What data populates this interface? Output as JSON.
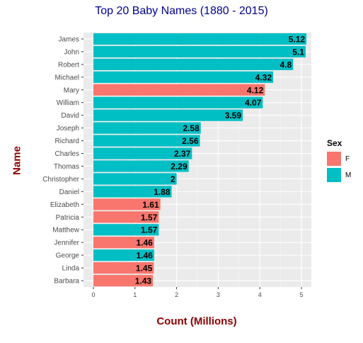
{
  "chart_data": {
    "type": "bar",
    "orientation": "horizontal",
    "title": "Top 20 Baby Names (1880 - 2015)",
    "xlabel": "Count (Millions)",
    "ylabel": "Name",
    "xlim": [
      0,
      5.4
    ],
    "xticks": [
      "0",
      "1",
      "2",
      "3",
      "4",
      "5"
    ],
    "grid": true,
    "legend": {
      "title": "Sex",
      "placement": "right",
      "entries": [
        {
          "label": "F",
          "color": "#F8766D"
        },
        {
          "label": "M",
          "color": "#00BFC4"
        }
      ]
    },
    "categories": [
      "James",
      "John",
      "Robert",
      "Michael",
      "Mary",
      "William",
      "David",
      "Joseph",
      "Richard",
      "Charles",
      "Thomas",
      "Christopher",
      "Daniel",
      "Elizabeth",
      "Patricia",
      "Matthew",
      "Jennifer",
      "George",
      "Linda",
      "Barbara"
    ],
    "values": [
      5.12,
      5.1,
      4.8,
      4.32,
      4.12,
      4.07,
      3.59,
      2.58,
      2.56,
      2.37,
      2.29,
      2,
      1.88,
      1.61,
      1.57,
      1.57,
      1.46,
      1.46,
      1.45,
      1.43
    ],
    "labels": [
      "5.12",
      "5.1",
      "4.8",
      "4.32",
      "4.12",
      "4.07",
      "3.59",
      "2.58",
      "2.56",
      "2.37",
      "2.29",
      "2",
      "1.88",
      "1.61",
      "1.57",
      "1.57",
      "1.46",
      "1.46",
      "1.45",
      "1.43"
    ],
    "sex": [
      "M",
      "M",
      "M",
      "M",
      "F",
      "M",
      "M",
      "M",
      "M",
      "M",
      "M",
      "M",
      "M",
      "F",
      "F",
      "M",
      "F",
      "M",
      "F",
      "F"
    ]
  }
}
